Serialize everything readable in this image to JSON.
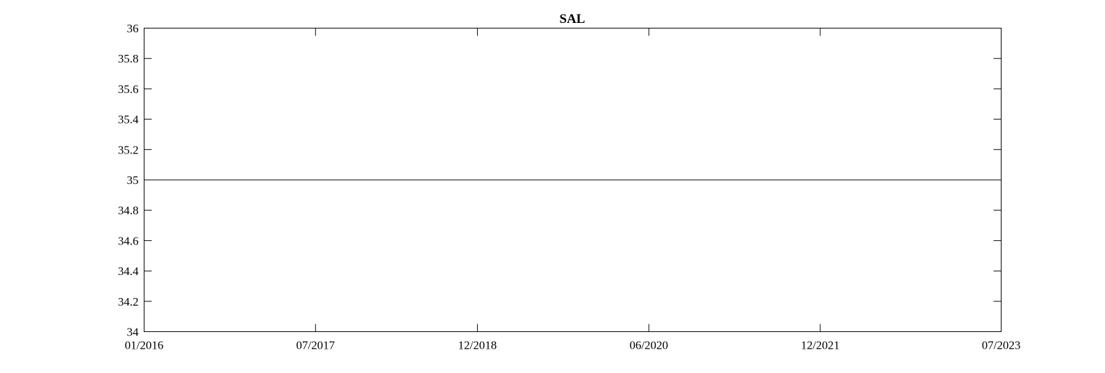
{
  "chart_data": {
    "type": "line",
    "title": "SAL",
    "xlabel": "",
    "ylabel": "",
    "x_tick_labels": [
      "01/2016",
      "07/2017",
      "12/2018",
      "06/2020",
      "12/2021",
      "07/2023"
    ],
    "xlim": [
      "01/2016",
      "07/2023"
    ],
    "y_tick_labels": [
      "34",
      "34.2",
      "34.4",
      "34.6",
      "34.8",
      "35",
      "35.2",
      "35.4",
      "35.6",
      "35.8",
      "36"
    ],
    "ylim": [
      34,
      36
    ],
    "grid": false,
    "series": [
      {
        "x": [
          "01/2016",
          "07/2023"
        ],
        "values": [
          35,
          35
        ],
        "color": "#000000"
      }
    ]
  }
}
